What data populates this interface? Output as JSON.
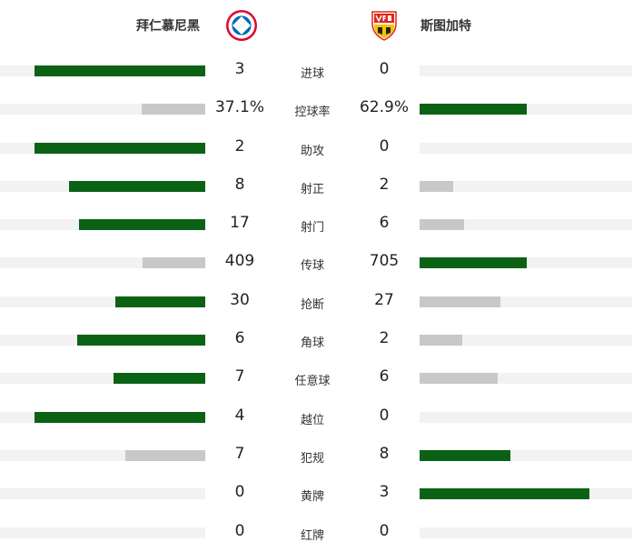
{
  "teams": {
    "home": {
      "name": "拜仁慕尼黑",
      "logo_icon": "bayern-munich-crest"
    },
    "away": {
      "name": "斯图加特",
      "logo_icon": "vfb-stuttgart-crest"
    }
  },
  "colors": {
    "leader": "#0b6215",
    "trailer": "#c8c8c8",
    "track": "#f2f2f2"
  },
  "stats": [
    {
      "label": "进球",
      "home": "3",
      "away": "0",
      "home_share": 1.0,
      "away_share": 0.0
    },
    {
      "label": "控球率",
      "home": "37.1%",
      "away": "62.9%",
      "home_share": 0.371,
      "away_share": 0.629
    },
    {
      "label": "助攻",
      "home": "2",
      "away": "0",
      "home_share": 1.0,
      "away_share": 0.0
    },
    {
      "label": "射正",
      "home": "8",
      "away": "2",
      "home_share": 0.8,
      "away_share": 0.2
    },
    {
      "label": "射门",
      "home": "17",
      "away": "6",
      "home_share": 0.739,
      "away_share": 0.261
    },
    {
      "label": "传球",
      "home": "409",
      "away": "705",
      "home_share": 0.367,
      "away_share": 0.633
    },
    {
      "label": "抢断",
      "home": "30",
      "away": "27",
      "home_share": 0.526,
      "away_share": 0.474
    },
    {
      "label": "角球",
      "home": "6",
      "away": "2",
      "home_share": 0.75,
      "away_share": 0.25
    },
    {
      "label": "任意球",
      "home": "7",
      "away": "6",
      "home_share": 0.538,
      "away_share": 0.462
    },
    {
      "label": "越位",
      "home": "4",
      "away": "0",
      "home_share": 1.0,
      "away_share": 0.0
    },
    {
      "label": "犯规",
      "home": "7",
      "away": "8",
      "home_share": 0.467,
      "away_share": 0.533
    },
    {
      "label": "黄牌",
      "home": "0",
      "away": "3",
      "home_share": 0.0,
      "away_share": 1.0
    },
    {
      "label": "红牌",
      "home": "0",
      "away": "0",
      "home_share": 0.0,
      "away_share": 0.0
    }
  ]
}
